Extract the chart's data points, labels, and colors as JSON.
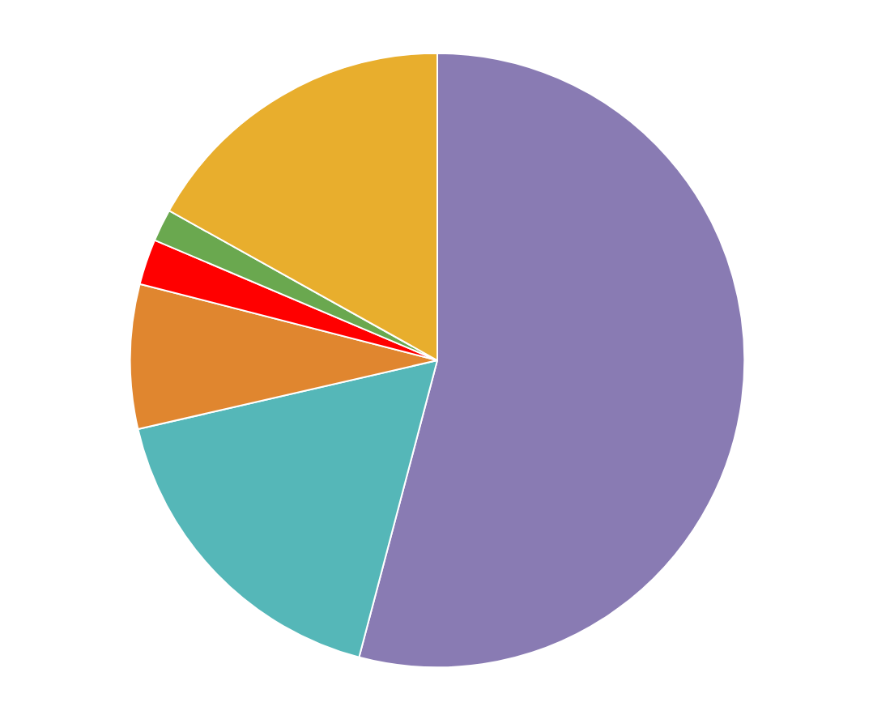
{
  "chart_data": {
    "type": "pie",
    "categories": [
      null,
      null,
      null,
      null,
      null,
      null
    ],
    "values": [
      54.1,
      17.3,
      7.6,
      2.4,
      1.7,
      16.9
    ],
    "colors": [
      "#897bb3",
      "#55b7b8",
      "#e0862f",
      "#ff0000",
      "#6aa84f",
      "#e8ae2d"
    ]
  }
}
